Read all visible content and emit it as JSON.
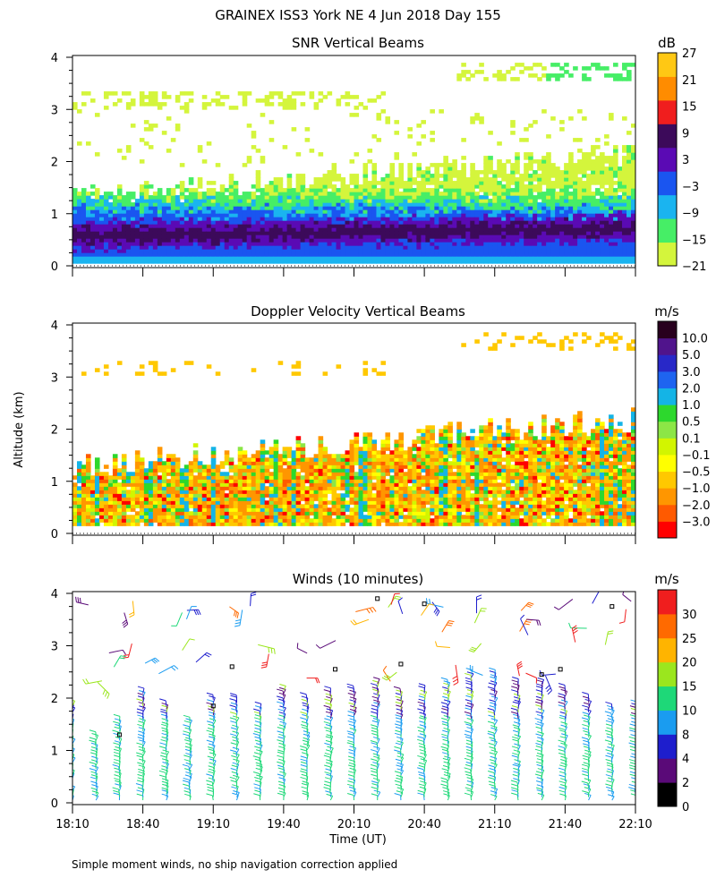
{
  "figure_title": "GRAINEX ISS3 York NE   4 Jun 2018 Day 155",
  "footnote": "Simple moment winds, no ship navigation correction applied",
  "colors": {
    "snr_scale": [
      "#d4f53c",
      "#46ee66",
      "#1ab4f0",
      "#1a55f0",
      "#5a0ab4",
      "#3c0a5a",
      "#f01e1e",
      "#ff8c00",
      "#ffc814"
    ],
    "doppler_scale": [
      "#ff0000",
      "#ff5a00",
      "#ff9600",
      "#ffc800",
      "#ffff00",
      "#d2f500",
      "#8ce646",
      "#2dd82d",
      "#14b4e6",
      "#1e64f0",
      "#2828c8",
      "#50148c",
      "#28001e"
    ],
    "wind_scale": [
      "#000000",
      "#5a0a78",
      "#1e1ecd",
      "#1a9cf0",
      "#1ed878",
      "#9be61e",
      "#ffb400",
      "#ff6a00",
      "#f01e1e"
    ]
  },
  "chart_data": [
    {
      "type": "heatmap",
      "title": "SNR Vertical Beams",
      "xlabel": "",
      "ylabel": "Altitude (km)",
      "ylim": [
        0,
        4
      ],
      "yticks": [
        0,
        1,
        2,
        3,
        4
      ],
      "xlim": [
        "18:10",
        "22:10"
      ],
      "xticks": [
        "18:10",
        "18:40",
        "19:10",
        "19:40",
        "20:10",
        "20:40",
        "21:10",
        "21:40",
        "22:10"
      ],
      "colorbar_unit": "dB",
      "colorbar_labels": [
        "27",
        "21",
        "15",
        "9",
        "3",
        "−3",
        "−9",
        "−15",
        "−21"
      ],
      "description_layers": [
        {
          "level": "−9 to −3 (strong)",
          "altitude_km": [
            0.2,
            0.75
          ]
        },
        {
          "level": "3 to 15 (max)",
          "altitude_km": [
            0.4,
            0.7
          ]
        },
        {
          "level": "−21 to −15",
          "altitude_km": [
            1.0,
            2.2
          ]
        },
        {
          "level": "−21 to −15 (sparse)",
          "altitude_km": [
            3.0,
            3.9
          ]
        }
      ]
    },
    {
      "type": "heatmap",
      "title": "Doppler Velocity Vertical Beams",
      "xlabel": "",
      "ylabel": "Altitude (km)",
      "ylim": [
        0,
        4
      ],
      "yticks": [
        0,
        1,
        2,
        3,
        4
      ],
      "xlim": [
        "18:10",
        "22:10"
      ],
      "xticks": [
        "18:10",
        "18:40",
        "19:10",
        "19:40",
        "20:10",
        "20:40",
        "21:10",
        "21:40",
        "22:10"
      ],
      "colorbar_unit": "m/s",
      "colorbar_labels": [
        "10.0",
        "5.0",
        "3.0",
        "2.0",
        "1.0",
        "0.5",
        "0.1",
        "−0.1",
        "−0.5",
        "−1.0",
        "−2.0",
        "−3.0"
      ]
    },
    {
      "type": "scatter",
      "title": "Winds (10 minutes)",
      "xlabel": "Time (UT)",
      "ylabel": "Altitude (km)",
      "ylim": [
        0,
        4
      ],
      "yticks": [
        0,
        1,
        2,
        3,
        4
      ],
      "xlim": [
        "18:10",
        "22:10"
      ],
      "xticks": [
        "18:10",
        "18:40",
        "19:10",
        "19:40",
        "20:10",
        "20:40",
        "21:10",
        "21:40",
        "22:10"
      ],
      "colorbar_unit": "m/s",
      "colorbar_labels": [
        "30",
        "25",
        "20",
        "15",
        "10",
        "8",
        "4",
        "2",
        "0"
      ],
      "profile_times_min_after_1810": [
        0,
        10,
        20,
        30,
        40,
        50,
        60,
        70,
        80,
        90,
        100,
        110,
        120,
        130,
        140,
        150,
        160,
        170,
        180,
        190,
        200,
        210,
        220,
        230,
        240
      ],
      "top_of_profile_km": [
        1.9,
        1.3,
        1.6,
        2.1,
        1.9,
        1.6,
        2.0,
        2.0,
        1.8,
        2.2,
        2.0,
        2.1,
        2.2,
        2.3,
        2.1,
        2.2,
        2.3,
        2.5,
        2.5,
        2.3,
        2.3,
        2.2,
        2.0,
        1.8,
        1.9
      ],
      "typical_speed_ms": "10–15 near surface, 4–8 aloft"
    }
  ]
}
